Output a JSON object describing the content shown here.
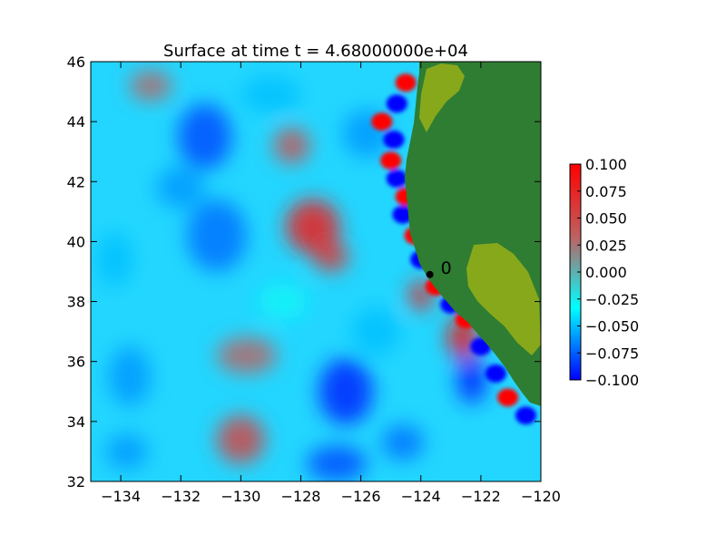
{
  "chart_data": {
    "type": "heatmap",
    "title": "Surface at time t = 4.68000000e+04",
    "xlabel": "",
    "ylabel": "",
    "xlim": [
      -135,
      -120
    ],
    "ylim": [
      32,
      46
    ],
    "x_ticks": [
      -134,
      -132,
      -130,
      -128,
      -126,
      -124,
      -122,
      -120
    ],
    "y_ticks": [
      32,
      34,
      36,
      38,
      40,
      42,
      44,
      46
    ],
    "x_tick_labels": [
      "−134",
      "−132",
      "−130",
      "−128",
      "−126",
      "−124",
      "−122",
      "−120"
    ],
    "y_tick_labels": [
      "32",
      "34",
      "36",
      "38",
      "40",
      "42",
      "44",
      "46"
    ],
    "colorbar": {
      "min": -0.1,
      "max": 0.1,
      "ticks": [
        0.1,
        0.075,
        0.05,
        0.025,
        0.0,
        -0.025,
        -0.05,
        -0.075,
        -0.1
      ],
      "tick_labels": [
        "0.100",
        "0.075",
        "0.050",
        "0.025",
        "0.000",
        "−0.025",
        "−0.050",
        "−0.075",
        "−0.100"
      ],
      "colors": [
        "#0000ff",
        "#00ffff",
        "#bf6060",
        "#ff0000"
      ]
    },
    "land_colors": {
      "land": "#2e7d32",
      "lowland": "#88a81c"
    },
    "gauge": {
      "label": "0",
      "lon": -123.7,
      "lat": 38.9
    },
    "grid": false,
    "legend": "colorbar-right",
    "ocean_blobs": [
      {
        "lon": -131.2,
        "lat": 43.5,
        "rx": 0.9,
        "ry": 1.1,
        "v": -0.08
      },
      {
        "lon": -130.8,
        "lat": 40.2,
        "rx": 1.0,
        "ry": 1.2,
        "v": -0.07
      },
      {
        "lon": -132.0,
        "lat": 41.8,
        "rx": 0.8,
        "ry": 0.7,
        "v": -0.06
      },
      {
        "lon": -127.6,
        "lat": 40.5,
        "rx": 0.9,
        "ry": 0.9,
        "v": 0.08
      },
      {
        "lon": -127.0,
        "lat": 39.5,
        "rx": 0.6,
        "ry": 0.5,
        "v": 0.06
      },
      {
        "lon": -126.5,
        "lat": 35.0,
        "rx": 0.9,
        "ry": 1.1,
        "v": -0.09
      },
      {
        "lon": -126.8,
        "lat": 32.6,
        "rx": 1.0,
        "ry": 0.6,
        "v": -0.08
      },
      {
        "lon": -130.0,
        "lat": 33.4,
        "rx": 0.8,
        "ry": 0.8,
        "v": 0.05
      },
      {
        "lon": -129.8,
        "lat": 36.2,
        "rx": 1.0,
        "ry": 0.6,
        "v": 0.03
      },
      {
        "lon": -133.7,
        "lat": 35.5,
        "rx": 0.7,
        "ry": 1.0,
        "v": -0.06
      },
      {
        "lon": -134.2,
        "lat": 39.4,
        "rx": 0.6,
        "ry": 0.9,
        "v": -0.05
      },
      {
        "lon": -133.8,
        "lat": 33.0,
        "rx": 0.7,
        "ry": 0.6,
        "v": -0.06
      },
      {
        "lon": -124.6,
        "lat": 33.3,
        "rx": 0.7,
        "ry": 0.6,
        "v": -0.07
      },
      {
        "lon": -125.5,
        "lat": 37.0,
        "rx": 0.8,
        "ry": 0.8,
        "v": -0.05
      },
      {
        "lon": -125.8,
        "lat": 43.6,
        "rx": 0.8,
        "ry": 0.8,
        "v": -0.06
      },
      {
        "lon": -129.0,
        "lat": 44.9,
        "rx": 1.0,
        "ry": 0.6,
        "v": -0.05
      },
      {
        "lon": -128.3,
        "lat": 43.2,
        "rx": 0.6,
        "ry": 0.6,
        "v": 0.04
      },
      {
        "lon": -122.6,
        "lat": 36.8,
        "rx": 0.5,
        "ry": 0.7,
        "v": 0.09
      },
      {
        "lon": -122.3,
        "lat": 35.4,
        "rx": 0.5,
        "ry": 0.8,
        "v": -0.09
      },
      {
        "lon": -124.0,
        "lat": 38.2,
        "rx": 0.4,
        "ry": 0.5,
        "v": 0.07
      },
      {
        "lon": -133.0,
        "lat": 45.2,
        "rx": 0.7,
        "ry": 0.5,
        "v": 0.03
      },
      {
        "lon": -128.6,
        "lat": 38.0,
        "rx": 0.8,
        "ry": 0.6,
        "v": -0.03
      }
    ],
    "coast_features": [
      {
        "lon": -124.5,
        "lat": 45.3,
        "v": 0.1
      },
      {
        "lon": -124.8,
        "lat": 44.6,
        "v": -0.1
      },
      {
        "lon": -125.3,
        "lat": 44.0,
        "v": 0.1
      },
      {
        "lon": -124.9,
        "lat": 43.4,
        "v": -0.1
      },
      {
        "lon": -125.0,
        "lat": 42.7,
        "v": 0.1
      },
      {
        "lon": -124.8,
        "lat": 42.1,
        "v": -0.1
      },
      {
        "lon": -124.5,
        "lat": 41.5,
        "v": 0.1
      },
      {
        "lon": -124.6,
        "lat": 40.9,
        "v": -0.1
      },
      {
        "lon": -124.2,
        "lat": 40.2,
        "v": 0.1
      },
      {
        "lon": -124.0,
        "lat": 39.4,
        "v": -0.1
      },
      {
        "lon": -123.5,
        "lat": 38.5,
        "v": 0.1
      },
      {
        "lon": -123.0,
        "lat": 37.9,
        "v": -0.1
      },
      {
        "lon": -122.5,
        "lat": 37.4,
        "v": 0.1
      },
      {
        "lon": -122.0,
        "lat": 36.5,
        "v": -0.1
      },
      {
        "lon": -121.5,
        "lat": 35.6,
        "v": -0.1
      },
      {
        "lon": -121.1,
        "lat": 34.8,
        "v": 0.1
      },
      {
        "lon": -120.5,
        "lat": 34.2,
        "v": -0.1
      }
    ]
  }
}
